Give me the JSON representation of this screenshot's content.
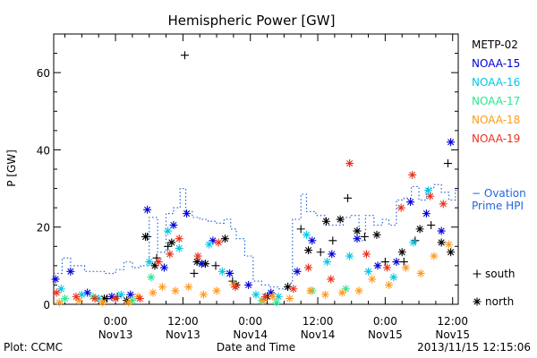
{
  "chart_data": {
    "type": "scatter",
    "title": "Hemispheric Power [GW]",
    "ylabel": "P [GW]",
    "xlabel": "Date and Time",
    "ylim": [
      0,
      70
    ],
    "xlim": [
      "2013-11-12 13:00",
      "2013-11-15 13:00"
    ],
    "yticks": [
      "0",
      "20",
      "40",
      "60"
    ],
    "xticks": [
      {
        "at": "2013-11-13 00:00",
        "label1": "0:00",
        "label2": "Nov13"
      },
      {
        "at": "2013-11-13 12:00",
        "label1": "12:00",
        "label2": "Nov13"
      },
      {
        "at": "2013-11-14 00:00",
        "label1": "0:00",
        "label2": "Nov14"
      },
      {
        "at": "2013-11-14 12:00",
        "label1": "12:00",
        "label2": "Nov14"
      },
      {
        "at": "2013-11-15 00:00",
        "label1": "0:00",
        "label2": "Nov15"
      },
      {
        "at": "2013-11-15 12:00",
        "label1": "12:00",
        "label2": "Nov15"
      }
    ],
    "legend_position": "right",
    "marker_legend": [
      {
        "symbol": "+",
        "label": "south"
      },
      {
        "symbol": "*",
        "label": "north"
      }
    ],
    "series": [
      {
        "name": "METP-02",
        "color": "#000000",
        "marker": "plus",
        "points": [
          [
            "2013-11-12 22:30",
            1.5
          ],
          [
            "2013-11-13 00:20",
            2.0
          ],
          [
            "2013-11-13 05:40",
            17.5
          ],
          [
            "2013-11-13 07:20",
            12.0
          ],
          [
            "2013-11-13 09:20",
            15.0
          ],
          [
            "2013-11-13 12:20",
            64.5
          ],
          [
            "2013-11-13 14:00",
            8.0
          ],
          [
            "2013-11-13 17:50",
            10.0
          ],
          [
            "2013-11-13 20:50",
            6.0
          ],
          [
            "2013-11-14 09:00",
            19.5
          ],
          [
            "2013-11-14 12:30",
            13.5
          ],
          [
            "2013-11-14 14:40",
            16.5
          ],
          [
            "2013-11-14 17:20",
            27.5
          ],
          [
            "2013-11-14 20:20",
            17.5
          ],
          [
            "2013-11-15 00:00",
            11.0
          ],
          [
            "2013-11-15 03:20",
            11.0
          ],
          [
            "2013-11-15 05:20",
            16.5
          ],
          [
            "2013-11-15 08:10",
            20.5
          ],
          [
            "2013-11-15 11:10",
            36.5
          ]
        ]
      },
      {
        "name": "METP-02",
        "color": "#000000",
        "marker": "star",
        "points": [
          [
            "2013-11-12 22:00",
            1.5
          ],
          [
            "2013-11-13 02:00",
            1.0
          ],
          [
            "2013-11-13 05:20",
            17.5
          ],
          [
            "2013-11-13 07:00",
            10.0
          ],
          [
            "2013-11-13 10:00",
            16.0
          ],
          [
            "2013-11-13 14:30",
            11.0
          ],
          [
            "2013-11-13 16:00",
            10.5
          ],
          [
            "2013-11-13 19:30",
            17.0
          ],
          [
            "2013-11-13 21:30",
            5.0
          ],
          [
            "2013-11-14 03:00",
            2.0
          ],
          [
            "2013-11-14 06:40",
            4.5
          ],
          [
            "2013-11-14 10:20",
            14.0
          ],
          [
            "2013-11-14 13:30",
            21.5
          ],
          [
            "2013-11-14 16:00",
            22.0
          ],
          [
            "2013-11-14 19:00",
            19.0
          ],
          [
            "2013-11-14 22:30",
            18.0
          ],
          [
            "2013-11-15 03:00",
            13.5
          ],
          [
            "2013-11-15 06:10",
            19.5
          ],
          [
            "2013-11-15 10:00",
            16.0
          ],
          [
            "2013-11-15 11:40",
            13.5
          ]
        ]
      },
      {
        "name": "NOAA-15",
        "color": "#0000d8",
        "marker": "star",
        "points": [
          [
            "2013-11-12 13:20",
            6.5
          ],
          [
            "2013-11-12 16:00",
            8.5
          ],
          [
            "2013-11-12 19:00",
            3.0
          ],
          [
            "2013-11-12 23:20",
            2.0
          ],
          [
            "2013-11-13 02:40",
            2.5
          ],
          [
            "2013-11-13 05:40",
            24.5
          ],
          [
            "2013-11-13 08:40",
            9.5
          ],
          [
            "2013-11-13 10:20",
            20.5
          ],
          [
            "2013-11-13 12:40",
            23.5
          ],
          [
            "2013-11-13 15:20",
            10.5
          ],
          [
            "2013-11-13 17:20",
            16.5
          ],
          [
            "2013-11-13 20:20",
            8.0
          ],
          [
            "2013-11-13 23:40",
            5.0
          ],
          [
            "2013-11-14 03:40",
            3.0
          ],
          [
            "2013-11-14 08:20",
            8.5
          ],
          [
            "2013-11-14 11:00",
            16.5
          ],
          [
            "2013-11-14 14:30",
            13.0
          ],
          [
            "2013-11-14 19:00",
            17.0
          ],
          [
            "2013-11-14 22:40",
            10.0
          ],
          [
            "2013-11-15 02:00",
            11.0
          ],
          [
            "2013-11-15 04:30",
            26.5
          ],
          [
            "2013-11-15 07:20",
            23.5
          ],
          [
            "2013-11-15 10:00",
            19.0
          ],
          [
            "2013-11-15 11:40",
            42.0
          ]
        ]
      },
      {
        "name": "NOAA-16",
        "color": "#00c8e8",
        "marker": "star",
        "points": [
          [
            "2013-11-12 14:20",
            4.0
          ],
          [
            "2013-11-12 18:00",
            2.5
          ],
          [
            "2013-11-12 21:00",
            1.5
          ],
          [
            "2013-11-13 01:00",
            2.5
          ],
          [
            "2013-11-13 06:00",
            11.0
          ],
          [
            "2013-11-13 09:20",
            19.0
          ],
          [
            "2013-11-13 11:20",
            14.5
          ],
          [
            "2013-11-13 16:40",
            15.5
          ],
          [
            "2013-11-13 19:00",
            8.5
          ],
          [
            "2013-11-14 01:00",
            2.5
          ],
          [
            "2013-11-14 05:00",
            2.0
          ],
          [
            "2013-11-14 10:00",
            18.0
          ],
          [
            "2013-11-14 13:40",
            11.0
          ],
          [
            "2013-11-14 17:40",
            12.5
          ],
          [
            "2013-11-14 21:00",
            8.5
          ],
          [
            "2013-11-15 01:30",
            7.0
          ],
          [
            "2013-11-15 05:00",
            16.0
          ],
          [
            "2013-11-15 07:40",
            29.5
          ]
        ]
      },
      {
        "name": "NOAA-17",
        "color": "#28e890",
        "marker": "star",
        "points": [
          [
            "2013-11-12 15:00",
            1.5
          ],
          [
            "2013-11-12 20:00",
            2.0
          ],
          [
            "2013-11-13 03:00",
            1.0
          ],
          [
            "2013-11-13 06:20",
            7.0
          ],
          [
            "2013-11-14 02:00",
            1.0
          ],
          [
            "2013-11-14 04:40",
            0.5
          ],
          [
            "2013-11-14 11:00",
            3.5
          ],
          [
            "2013-11-14 17:00",
            4.0
          ]
        ]
      },
      {
        "name": "NOAA-18",
        "color": "#ff9a1e",
        "marker": "star",
        "points": [
          [
            "2013-11-12 14:00",
            0.5
          ],
          [
            "2013-11-12 17:30",
            1.0
          ],
          [
            "2013-11-12 21:40",
            0.5
          ],
          [
            "2013-11-13 02:20",
            0.5
          ],
          [
            "2013-11-13 04:00",
            2.0
          ],
          [
            "2013-11-13 06:40",
            3.0
          ],
          [
            "2013-11-13 08:20",
            4.5
          ],
          [
            "2013-11-13 10:40",
            3.5
          ],
          [
            "2013-11-13 13:00",
            4.5
          ],
          [
            "2013-11-13 15:40",
            2.5
          ],
          [
            "2013-11-13 18:00",
            3.5
          ],
          [
            "2013-11-13 21:00",
            5.0
          ],
          [
            "2013-11-14 02:20",
            1.0
          ],
          [
            "2013-11-14 04:00",
            2.0
          ],
          [
            "2013-11-14 07:00",
            1.5
          ],
          [
            "2013-11-14 10:40",
            3.5
          ],
          [
            "2013-11-14 13:20",
            2.5
          ],
          [
            "2013-11-14 16:20",
            3.0
          ],
          [
            "2013-11-14 19:20",
            3.5
          ],
          [
            "2013-11-14 21:40",
            6.5
          ],
          [
            "2013-11-15 00:40",
            5.0
          ],
          [
            "2013-11-15 03:40",
            9.5
          ],
          [
            "2013-11-15 06:20",
            8.0
          ],
          [
            "2013-11-15 08:40",
            12.5
          ],
          [
            "2013-11-15 11:20",
            15.5
          ]
        ]
      },
      {
        "name": "NOAA-19",
        "color": "#e8321e",
        "marker": "star",
        "points": [
          [
            "2013-11-12 13:30",
            3.0
          ],
          [
            "2013-11-12 17:00",
            2.0
          ],
          [
            "2013-11-12 20:20",
            1.5
          ],
          [
            "2013-11-13 00:00",
            1.5
          ],
          [
            "2013-11-13 04:20",
            1.5
          ],
          [
            "2013-11-13 07:40",
            11.0
          ],
          [
            "2013-11-13 09:40",
            13.0
          ],
          [
            "2013-11-13 11:20",
            17.0
          ],
          [
            "2013-11-13 14:40",
            12.5
          ],
          [
            "2013-11-13 18:20",
            16.0
          ],
          [
            "2013-11-13 21:20",
            4.5
          ],
          [
            "2013-11-14 02:40",
            2.0
          ],
          [
            "2013-11-14 07:40",
            4.0
          ],
          [
            "2013-11-14 10:20",
            9.5
          ],
          [
            "2013-11-14 14:20",
            6.5
          ],
          [
            "2013-11-14 17:40",
            36.5
          ],
          [
            "2013-11-14 20:40",
            13.0
          ],
          [
            "2013-11-15 00:20",
            9.5
          ],
          [
            "2013-11-15 02:50",
            25.0
          ],
          [
            "2013-11-15 04:50",
            33.5
          ],
          [
            "2013-11-15 08:00",
            28.0
          ],
          [
            "2013-11-15 10:20",
            26.0
          ]
        ]
      }
    ],
    "model": {
      "name_line1": "− Ovation",
      "name_line2": "Prime HPI",
      "color": "#2266dd",
      "style": "dotted-step",
      "points": [
        [
          "2013-11-12 13:00",
          8.0
        ],
        [
          "2013-11-12 14:30",
          12.0
        ],
        [
          "2013-11-12 16:00",
          10.0
        ],
        [
          "2013-11-12 18:30",
          8.5
        ],
        [
          "2013-11-12 22:00",
          8.0
        ],
        [
          "2013-11-13 00:00",
          9.0
        ],
        [
          "2013-11-13 01:30",
          11.0
        ],
        [
          "2013-11-13 03:00",
          9.5
        ],
        [
          "2013-11-13 04:30",
          10.0
        ],
        [
          "2013-11-13 06:00",
          22.5
        ],
        [
          "2013-11-13 07:30",
          13.5
        ],
        [
          "2013-11-13 09:00",
          23.5
        ],
        [
          "2013-11-13 10:20",
          25.0
        ],
        [
          "2013-11-13 11:30",
          30.0
        ],
        [
          "2013-11-13 12:30",
          24.0
        ],
        [
          "2013-11-13 13:40",
          22.5
        ],
        [
          "2013-11-13 15:00",
          22.0
        ],
        [
          "2013-11-13 16:30",
          21.5
        ],
        [
          "2013-11-13 18:00",
          21.0
        ],
        [
          "2013-11-13 19:20",
          22.0
        ],
        [
          "2013-11-13 20:30",
          19.5
        ],
        [
          "2013-11-13 21:30",
          17.0
        ],
        [
          "2013-11-13 23:00",
          12.5
        ],
        [
          "2013-11-14 00:30",
          6.0
        ],
        [
          "2013-11-14 02:00",
          5.0
        ],
        [
          "2013-11-14 03:30",
          4.5
        ],
        [
          "2013-11-14 05:00",
          4.0
        ],
        [
          "2013-11-14 06:30",
          5.5
        ],
        [
          "2013-11-14 07:30",
          22.0
        ],
        [
          "2013-11-14 09:00",
          28.5
        ],
        [
          "2013-11-14 10:00",
          24.0
        ],
        [
          "2013-11-14 11:40",
          23.0
        ],
        [
          "2013-11-14 13:20",
          20.5
        ],
        [
          "2013-11-14 15:00",
          20.5
        ],
        [
          "2013-11-14 16:30",
          22.5
        ],
        [
          "2013-11-14 18:00",
          23.0
        ],
        [
          "2013-11-14 19:20",
          16.5
        ],
        [
          "2013-11-14 20:30",
          23.0
        ],
        [
          "2013-11-14 22:00",
          20.5
        ],
        [
          "2013-11-14 23:30",
          22.0
        ],
        [
          "2013-11-15 00:40",
          20.5
        ],
        [
          "2013-11-15 02:00",
          27.0
        ],
        [
          "2013-11-15 03:20",
          27.5
        ],
        [
          "2013-11-15 04:40",
          30.5
        ],
        [
          "2013-11-15 06:00",
          27.0
        ],
        [
          "2013-11-15 07:20",
          30.0
        ],
        [
          "2013-11-15 08:40",
          31.0
        ],
        [
          "2013-11-15 10:00",
          29.0
        ],
        [
          "2013-11-15 11:20",
          27.0
        ],
        [
          "2013-11-15 12:30",
          29.5
        ],
        [
          "2013-11-15 13:00",
          29.5
        ]
      ]
    }
  },
  "footer": {
    "left": "Plot: CCMC",
    "right": "2013/11/15 12:15:06"
  }
}
